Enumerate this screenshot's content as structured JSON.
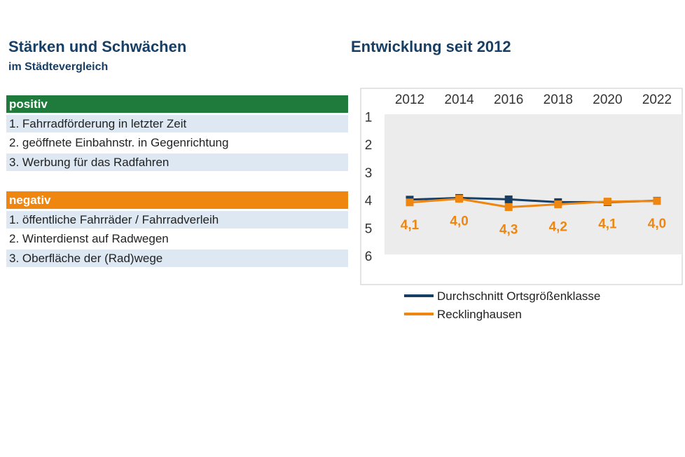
{
  "left": {
    "title": "Stärken und Schwächen",
    "subtitle": "im Städtevergleich",
    "positive": {
      "header": "positiv",
      "items": [
        "1. Fahrradförderung in letzter Zeit",
        "2. geöffnete Einbahnstr. in Gegenrichtung",
        "3. Werbung für das Radfahren"
      ]
    },
    "negative": {
      "header": "negativ",
      "items": [
        "1. öffentliche Fahrräder / Fahrradverleih",
        "2. Winterdienst auf Radwegen",
        "3. Oberfläche der (Rad)wege"
      ]
    }
  },
  "right": {
    "title": "Entwicklung seit 2012"
  },
  "chart_data": {
    "type": "line",
    "x": [
      "2012",
      "2014",
      "2016",
      "2018",
      "2020",
      "2022"
    ],
    "x_axis_position": "top",
    "y_ticks": [
      "1",
      "2",
      "3",
      "4",
      "5",
      "6"
    ],
    "ylim": [
      1,
      6
    ],
    "y_inverted": true,
    "grid": false,
    "legend_position": "bottom",
    "series": [
      {
        "name": "Durchschnitt Ortsgrößenklasse",
        "values": [
          3.98,
          3.92,
          3.97,
          4.07,
          4.07,
          4.02
        ],
        "color": "#173f66"
      },
      {
        "name": "Recklinghausen",
        "values": [
          4.08,
          3.95,
          4.25,
          4.15,
          4.05,
          4.03
        ],
        "labels": [
          "4,1",
          "4,0",
          "4,3",
          "4,2",
          "4,1",
          "4,0"
        ],
        "color": "#ee860f"
      }
    ],
    "plot_background": "#ececec"
  }
}
